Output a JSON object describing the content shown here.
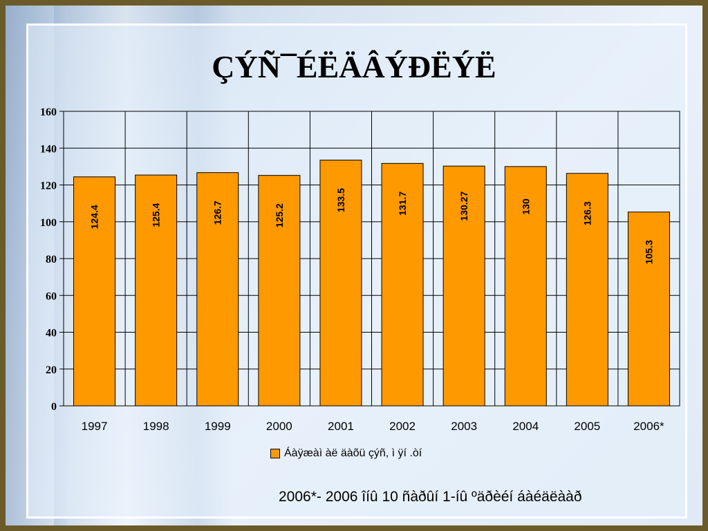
{
  "title": "ÇÝÑ¯ÉËÄÂÝÐËÝË",
  "footnote": "2006*- 2006 îíû 10 ñàðûí 1-íû ºäðèéí áàéäëààð",
  "colors": {
    "bar": "#ff9900",
    "grid": "#000000",
    "frame": "#6b5a2a"
  },
  "chart_data": {
    "type": "bar",
    "categories": [
      "1997",
      "1998",
      "1999",
      "2000",
      "2001",
      "2002",
      "2003",
      "2004",
      "2005",
      "2006*"
    ],
    "series": [
      {
        "name": "Áàÿæàì àë äàõü çýñ, ì ÿí .òí",
        "values": [
          124.4,
          125.4,
          126.7,
          125.2,
          133.5,
          131.7,
          130.27,
          130,
          126.3,
          105.3
        ],
        "labels": [
          "124.4",
          "125.4",
          "126.7",
          "125.2",
          "133.5",
          "131.7",
          "130.27",
          "130",
          "126.3",
          "105.3"
        ]
      }
    ],
    "yticks": [
      "0",
      "20",
      "40",
      "60",
      "80",
      "100",
      "120",
      "140",
      "160"
    ],
    "ylim": [
      0,
      160
    ],
    "grid": true,
    "legend_position": "bottom"
  }
}
